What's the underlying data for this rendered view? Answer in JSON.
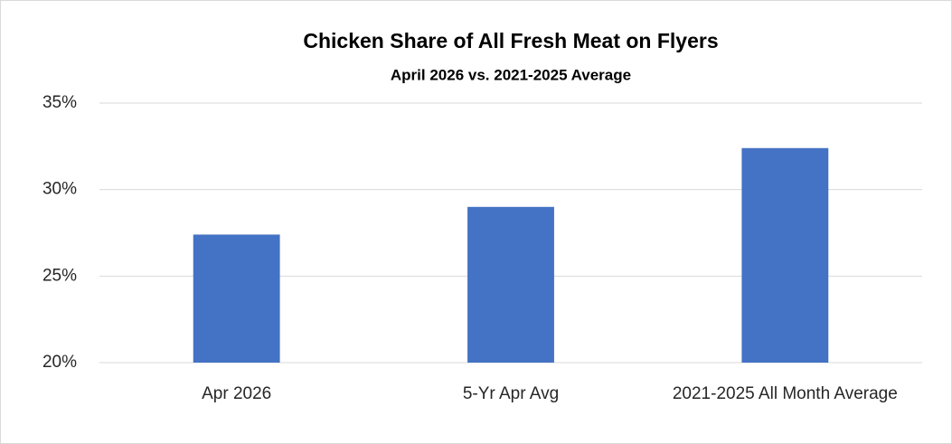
{
  "chart_data": {
    "type": "bar",
    "title": "Chicken Share of All Fresh Meat on Flyers",
    "subtitle": "April 2026 vs. 2021-2025 Average",
    "categories": [
      "Apr 2026",
      "5-Yr Apr Avg",
      "2021-2025 All Month Average"
    ],
    "values": [
      27.4,
      29.0,
      32.4
    ],
    "color": "#4472c4",
    "ylim": [
      20,
      35
    ],
    "yticks": [
      {
        "value": 20,
        "label": "20%"
      },
      {
        "value": 25,
        "label": "25%"
      },
      {
        "value": 30,
        "label": "30%"
      },
      {
        "value": 35,
        "label": "35%"
      }
    ],
    "grid": true
  }
}
